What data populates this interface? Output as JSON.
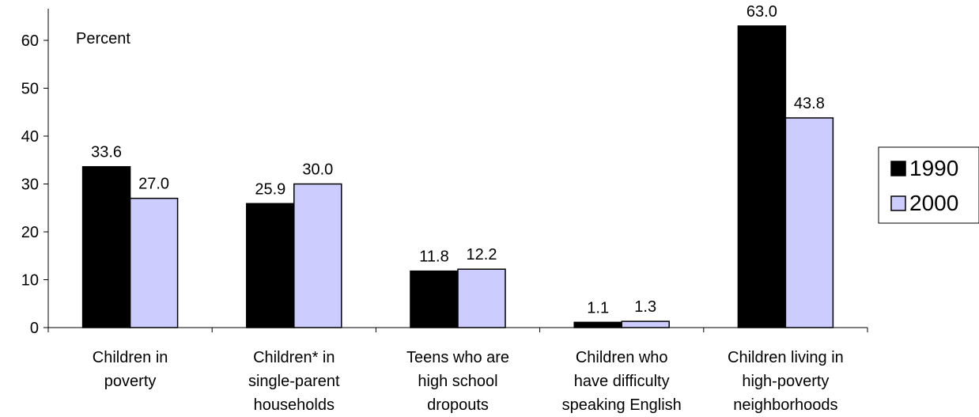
{
  "chart_data": {
    "type": "bar",
    "title": "",
    "ylabel": "Percent",
    "xlabel": "",
    "ylim": [
      0,
      63.5
    ],
    "yticks": [
      0,
      10,
      20,
      30,
      40,
      50,
      60
    ],
    "categories": [
      [
        "Children in",
        "poverty"
      ],
      [
        "Children* in",
        "single-parent",
        "households"
      ],
      [
        "Teens who are",
        "high school",
        "dropouts"
      ],
      [
        "Children who",
        "have difficulty",
        "speaking English"
      ],
      [
        "Children living in",
        "high-poverty",
        "neighborhoods"
      ]
    ],
    "series": [
      {
        "name": "1990",
        "values": [
          33.6,
          25.9,
          11.8,
          1.1,
          63.0
        ],
        "labels": [
          "33.6",
          "25.9",
          "11.8",
          "1.1",
          "63.0"
        ],
        "color": "#000000"
      },
      {
        "name": "2000",
        "values": [
          27.0,
          30.0,
          12.2,
          1.3,
          43.8
        ],
        "labels": [
          "27.0",
          "30.0",
          "12.2",
          "1.3",
          "43.8"
        ],
        "color": "#ccccff"
      }
    ],
    "legend": "right",
    "grid": false
  }
}
